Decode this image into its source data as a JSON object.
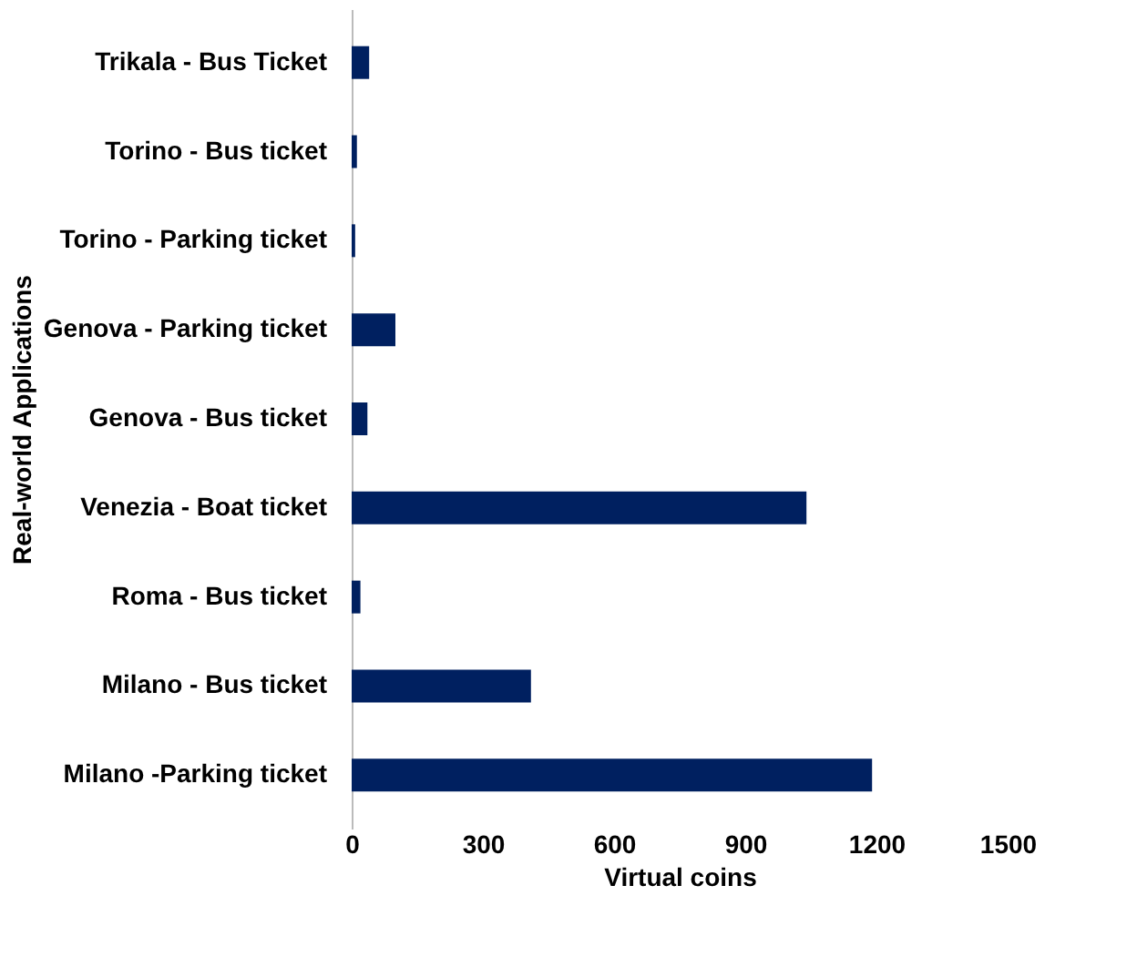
{
  "chart_data": {
    "type": "bar",
    "orientation": "horizontal",
    "xlabel": "Virtual coins",
    "ylabel": "Real-world Applications",
    "categories": [
      "Trikala - Bus Ticket",
      "Torino - Bus ticket",
      "Torino - Parking ticket",
      "Genova - Parking ticket",
      "Genova - Bus ticket",
      "Venezia - Boat ticket",
      "Roma - Bus ticket",
      "Milano - Bus ticket",
      "Milano -Parking ticket"
    ],
    "values": [
      40,
      12,
      8,
      100,
      36,
      1040,
      20,
      410,
      1190
    ],
    "color": "#002060",
    "xlim": [
      0,
      1500
    ],
    "xticks": [
      0,
      300,
      600,
      900,
      1200,
      1500
    ],
    "grid": false
  }
}
